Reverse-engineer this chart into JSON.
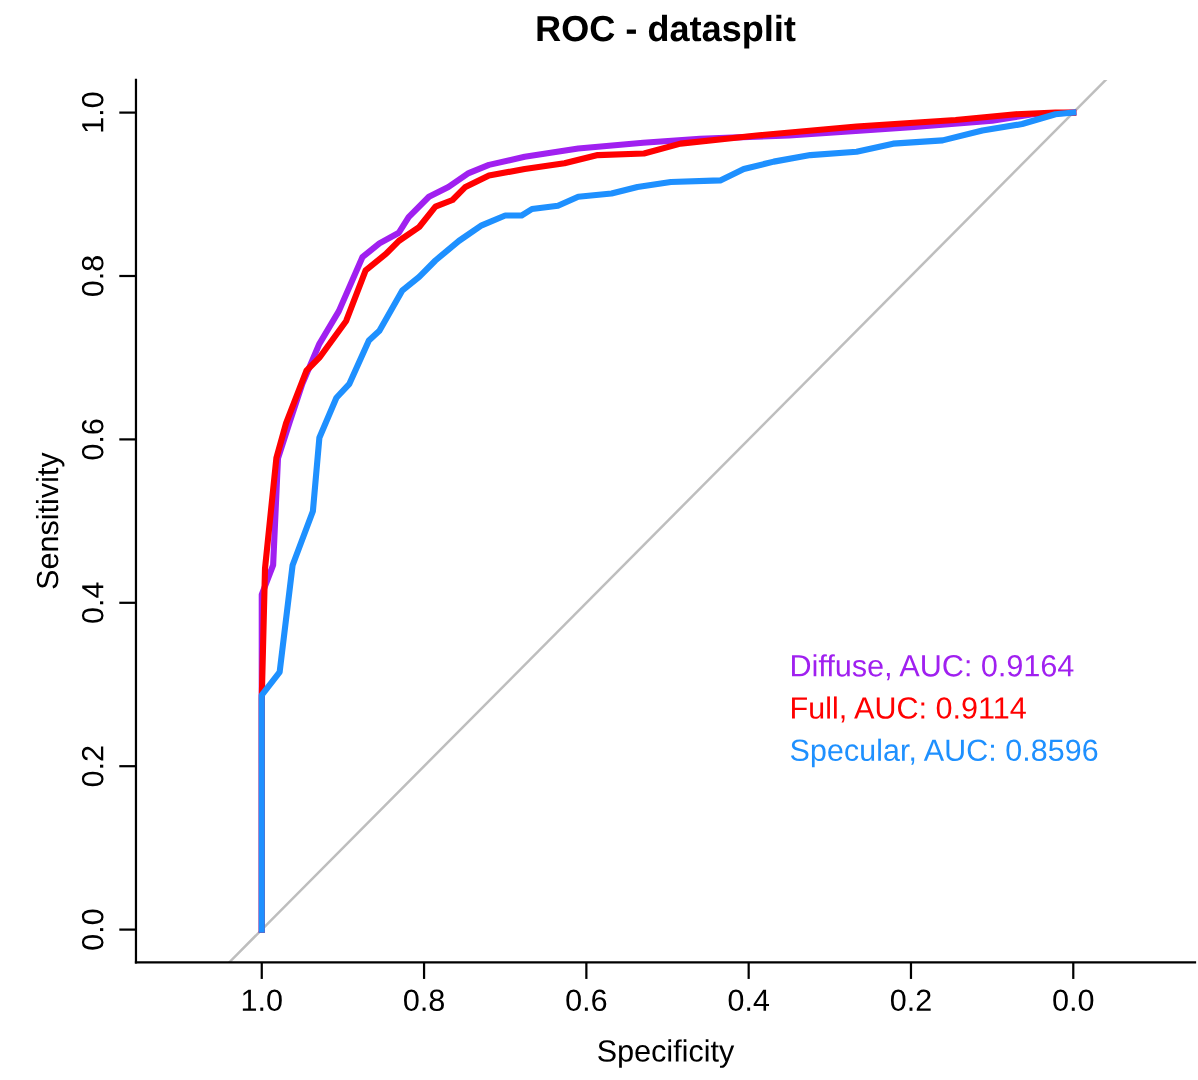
{
  "chart_data": {
    "type": "line",
    "title": "ROC - datasplit",
    "xlabel": "Specificity",
    "ylabel": "Sensitivity",
    "xlim": [
      1.155,
      -0.15
    ],
    "ylim": [
      -0.04,
      1.04
    ],
    "xticks": [
      {
        "value": 1,
        "label": "1.0"
      },
      {
        "value": 0.8,
        "label": "0.8"
      },
      {
        "value": 0.6,
        "label": "0.6"
      },
      {
        "value": 0.4,
        "label": "0.4"
      },
      {
        "value": 0.2,
        "label": "0.2"
      },
      {
        "value": 0,
        "label": "0.0"
      }
    ],
    "yticks": [
      {
        "value": 0,
        "label": "0.0"
      },
      {
        "value": 0.2,
        "label": "0.2"
      },
      {
        "value": 0.4,
        "label": "0.4"
      },
      {
        "value": 0.6,
        "label": "0.6"
      },
      {
        "value": 0.8,
        "label": "0.8"
      },
      {
        "value": 1,
        "label": "1.0"
      }
    ],
    "grid": false,
    "legend": "bottom right",
    "marker": "none",
    "line_style": "solid",
    "series": [
      {
        "type": "line",
        "color": "#bebebe",
        "x": [
          1.04,
          -0.04
        ],
        "values": [
          -0.04,
          1.04
        ]
      },
      {
        "name": "Diffuse, AUC: 0.9164",
        "color": "#a020f0",
        "x": [
          1.0,
          1.0,
          0.986,
          0.98,
          0.966,
          0.95,
          0.929,
          0.905,
          0.876,
          0.855,
          0.831,
          0.819,
          0.794,
          0.77,
          0.745,
          0.72,
          0.676,
          0.61,
          0.53,
          0.46,
          0.35,
          0.2,
          0.1,
          0.05,
          0.0
        ],
        "values": [
          0.0,
          0.41,
          0.446,
          0.577,
          0.62,
          0.668,
          0.717,
          0.757,
          0.823,
          0.84,
          0.853,
          0.872,
          0.897,
          0.909,
          0.926,
          0.936,
          0.946,
          0.956,
          0.963,
          0.968,
          0.972,
          0.982,
          0.99,
          0.998,
          1.0
        ]
      },
      {
        "name": "Full, AUC: 0.9114",
        "color": "#ff0000",
        "x": [
          1.0,
          1.0,
          0.996,
          0.982,
          0.97,
          0.945,
          0.929,
          0.896,
          0.872,
          0.847,
          0.831,
          0.806,
          0.786,
          0.765,
          0.749,
          0.72,
          0.676,
          0.627,
          0.586,
          0.529,
          0.484,
          0.39,
          0.267,
          0.145,
          0.071,
          0.022,
          0.0
        ],
        "values": [
          0.0,
          0.283,
          0.442,
          0.577,
          0.62,
          0.684,
          0.7,
          0.745,
          0.807,
          0.827,
          0.843,
          0.86,
          0.885,
          0.893,
          0.909,
          0.923,
          0.931,
          0.938,
          0.948,
          0.95,
          0.962,
          0.972,
          0.983,
          0.991,
          0.998,
          1.0,
          1.0
        ]
      },
      {
        "name": "Specular, AUC: 0.8596",
        "color": "#1e90ff",
        "x": [
          1.0,
          1.0,
          0.978,
          0.962,
          0.937,
          0.929,
          0.908,
          0.892,
          0.868,
          0.855,
          0.827,
          0.806,
          0.786,
          0.757,
          0.729,
          0.7,
          0.68,
          0.667,
          0.635,
          0.61,
          0.569,
          0.537,
          0.496,
          0.435,
          0.406,
          0.369,
          0.324,
          0.267,
          0.222,
          0.161,
          0.112,
          0.063,
          0.022,
          0.0
        ],
        "values": [
          0.0,
          0.287,
          0.315,
          0.446,
          0.512,
          0.602,
          0.651,
          0.668,
          0.721,
          0.733,
          0.782,
          0.799,
          0.819,
          0.843,
          0.862,
          0.874,
          0.874,
          0.882,
          0.886,
          0.897,
          0.901,
          0.909,
          0.915,
          0.917,
          0.931,
          0.94,
          0.948,
          0.952,
          0.962,
          0.966,
          0.978,
          0.986,
          0.998,
          1.0
        ]
      }
    ]
  }
}
